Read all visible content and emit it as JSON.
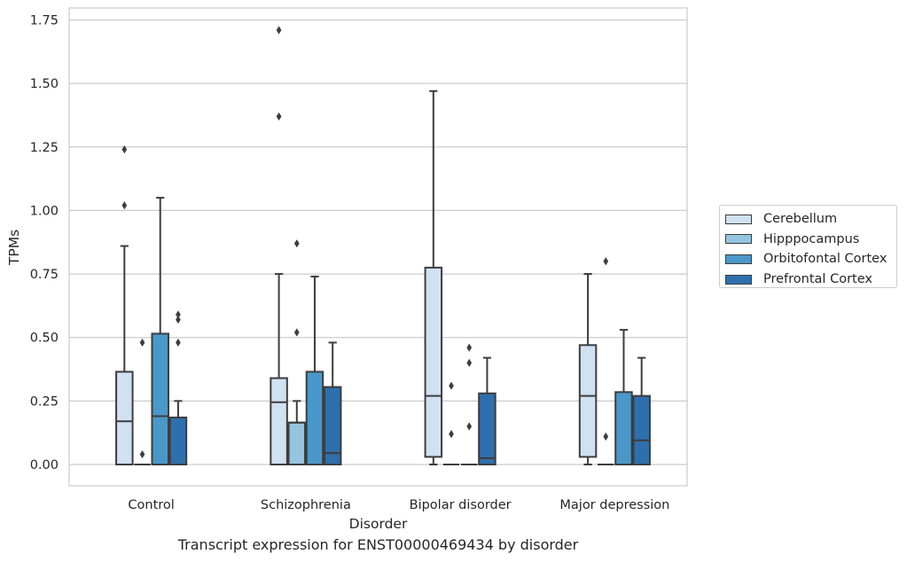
{
  "caption": "Transcript expression for ENST00000469434 by disorder",
  "chart_data": {
    "type": "box",
    "xlabel": "Disorder",
    "ylabel": "TPMs",
    "ylim": [
      -0.085,
      1.8
    ],
    "yticks": [
      "0.00",
      "0.25",
      "0.50",
      "0.75",
      "1.00",
      "1.25",
      "1.50",
      "1.75"
    ],
    "ytick_values": [
      0,
      0.25,
      0.5,
      0.75,
      1.0,
      1.25,
      1.5,
      1.75
    ],
    "grid": "horizontal",
    "legend_position": "right",
    "categories": [
      "Control",
      "Schizophrenia",
      "Bipolar disorder",
      "Major depression"
    ],
    "series": [
      {
        "name": "Cerebellum",
        "color": "#d0e1f2",
        "boxes": [
          {
            "whislo": 0.0,
            "q1": 0.0,
            "med": 0.17,
            "q3": 0.365,
            "whishi": 0.86,
            "fliers": [
              1.02,
              1.24
            ]
          },
          {
            "whislo": 0.0,
            "q1": 0.0,
            "med": 0.245,
            "q3": 0.34,
            "whishi": 0.75,
            "fliers": [
              1.37,
              1.71
            ]
          },
          {
            "whislo": 0.0,
            "q1": 0.03,
            "med": 0.27,
            "q3": 0.775,
            "whishi": 1.47,
            "fliers": []
          },
          {
            "whislo": 0.0,
            "q1": 0.03,
            "med": 0.27,
            "q3": 0.47,
            "whishi": 0.75,
            "fliers": []
          }
        ]
      },
      {
        "name": "Hipppocampus",
        "color": "#94c4df",
        "boxes": [
          {
            "whislo": 0.0,
            "q1": 0.0,
            "med": 0.0,
            "q3": 0.0,
            "whishi": 0.0,
            "fliers": [
              0.04,
              0.48
            ]
          },
          {
            "whislo": 0.0,
            "q1": 0.0,
            "med": 0.165,
            "q3": 0.165,
            "whishi": 0.25,
            "fliers": [
              0.52,
              0.87
            ]
          },
          {
            "whislo": 0.0,
            "q1": 0.0,
            "med": 0.0,
            "q3": 0.0,
            "whishi": 0.0,
            "fliers": [
              0.12,
              0.31
            ]
          },
          {
            "whislo": 0.0,
            "q1": 0.0,
            "med": 0.0,
            "q3": 0.0,
            "whishi": 0.0,
            "fliers": [
              0.11,
              0.8
            ]
          }
        ]
      },
      {
        "name": "Orbitofontal Cortex",
        "color": "#4a98c9",
        "boxes": [
          {
            "whislo": 0.0,
            "q1": 0.0,
            "med": 0.19,
            "q3": 0.515,
            "whishi": 1.05,
            "fliers": []
          },
          {
            "whislo": 0.0,
            "q1": 0.0,
            "med": 0.0,
            "q3": 0.365,
            "whishi": 0.74,
            "fliers": []
          },
          {
            "whislo": 0.0,
            "q1": 0.0,
            "med": 0.0,
            "q3": 0.0,
            "whishi": 0.0,
            "fliers": [
              0.15,
              0.4,
              0.46
            ]
          },
          {
            "whislo": 0.0,
            "q1": 0.0,
            "med": 0.0,
            "q3": 0.285,
            "whishi": 0.53,
            "fliers": []
          }
        ]
      },
      {
        "name": "Prefrontal Cortex",
        "color": "#2e6fae",
        "boxes": [
          {
            "whislo": 0.0,
            "q1": 0.0,
            "med": 0.0,
            "q3": 0.185,
            "whishi": 0.25,
            "fliers": [
              0.48,
              0.57,
              0.59
            ]
          },
          {
            "whislo": 0.0,
            "q1": 0.0,
            "med": 0.045,
            "q3": 0.305,
            "whishi": 0.48,
            "fliers": []
          },
          {
            "whislo": 0.0,
            "q1": 0.0,
            "med": 0.025,
            "q3": 0.28,
            "whishi": 0.42,
            "fliers": []
          },
          {
            "whislo": 0.0,
            "q1": 0.0,
            "med": 0.095,
            "q3": 0.27,
            "whishi": 0.42,
            "fliers": []
          }
        ]
      }
    ]
  }
}
